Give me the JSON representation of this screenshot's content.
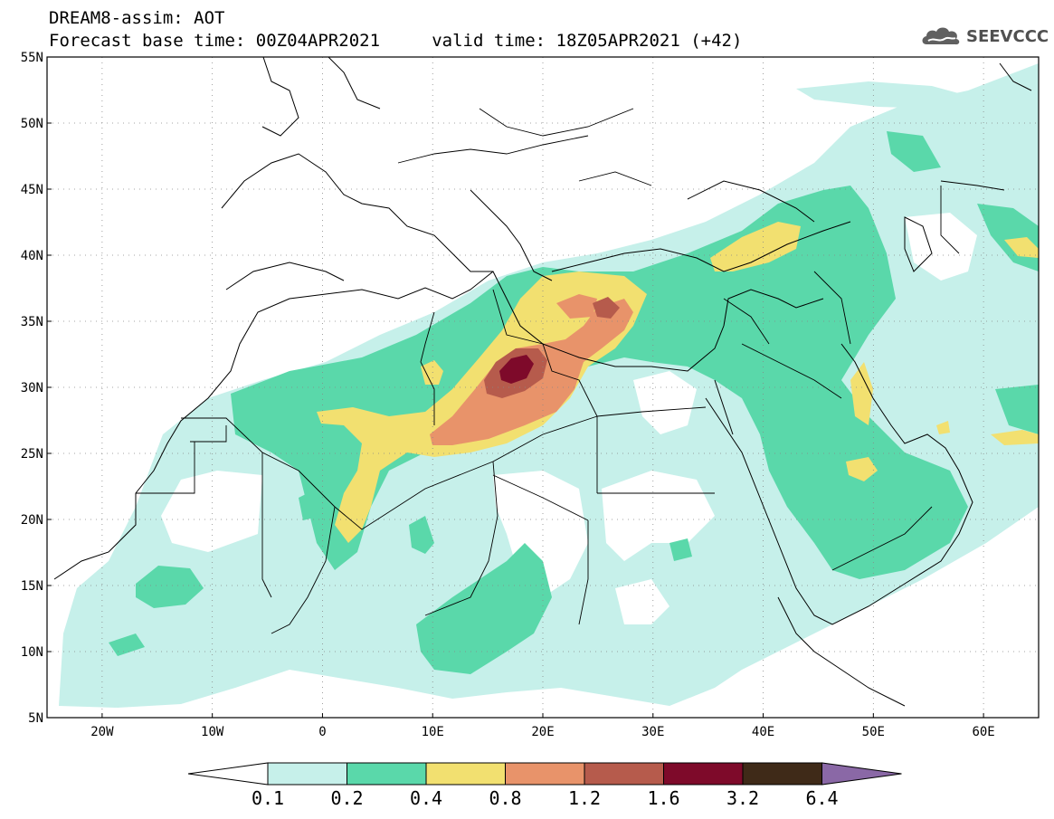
{
  "header": {
    "title_line1": "DREAM8-assim: AOT",
    "title_line2": "Forecast base time: 00Z04APR2021     valid time: 18Z05APR2021 (+42)",
    "logo_text": "SEEVCCC"
  },
  "map": {
    "lon_range": [
      -25,
      65
    ],
    "lat_range": [
      5,
      55
    ],
    "lat_ticks": [
      "55N",
      "50N",
      "45N",
      "40N",
      "35N",
      "30N",
      "25N",
      "20N",
      "15N",
      "10N",
      "5N"
    ],
    "lon_ticks": [
      "20W",
      "10W",
      "0",
      "10E",
      "20E",
      "30E",
      "40E",
      "50E",
      "60E"
    ],
    "grid": "dotted"
  },
  "colorbar": {
    "labels": [
      "0.1",
      "0.2",
      "0.4",
      "0.8",
      "1.2",
      "1.6",
      "3.2",
      "6.4"
    ],
    "colors": [
      "#c6f0ea",
      "#5ad8aa",
      "#f2e070",
      "#e8936a",
      "#b65b4c",
      "#7e0a2a",
      "#3f2a18"
    ],
    "under_color": "#ffffff",
    "over_color": "#8a68a6"
  },
  "colors": {
    "c1": "#c6f0ea",
    "c2": "#5ad8aa",
    "c3": "#f2e070",
    "c4": "#e8936a",
    "c5": "#b65b4c",
    "c6": "#7e0a2a"
  }
}
